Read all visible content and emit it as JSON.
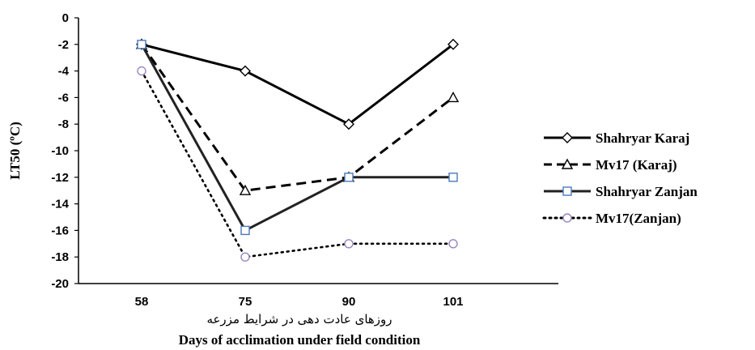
{
  "chart_data": {
    "type": "line",
    "x": [
      "58",
      "75",
      "90",
      "101"
    ],
    "ylabel": "LT50 (ºC)",
    "xlabel": "Days of acclimation under field condition",
    "xlabel_secondary": "روزهای عادت دهی در شرایط مزرعه",
    "ylim": [
      -20,
      0
    ],
    "yticks": [
      "0",
      "-2",
      "-4",
      "-6",
      "-8",
      "-10",
      "-12",
      "-14",
      "-16",
      "-18",
      "-20"
    ],
    "grid": false,
    "legend_position": "right",
    "series": [
      {
        "name": "Shahryar Karaj",
        "values": [
          -2,
          -4,
          -8,
          -2
        ],
        "marker": "diamond",
        "line": "solid",
        "color": "#000000",
        "marker_color": "#000000"
      },
      {
        "name": "Mv17 (Karaj)",
        "values": [
          -2,
          -13,
          -12,
          -6
        ],
        "marker": "triangle",
        "line": "dashed",
        "color": "#000000",
        "marker_color": "#000000"
      },
      {
        "name": "Shahryar Zanjan",
        "values": [
          -2,
          -16,
          -12,
          -12
        ],
        "marker": "square",
        "line": "solid",
        "color": "#222222",
        "marker_color": "#4a7ab8"
      },
      {
        "name": "Mv17(Zanjan)",
        "values": [
          -4,
          -18,
          -17,
          -17
        ],
        "marker": "circle",
        "line": "dotted",
        "color": "#000000",
        "marker_color": "#9a86c2"
      }
    ]
  }
}
